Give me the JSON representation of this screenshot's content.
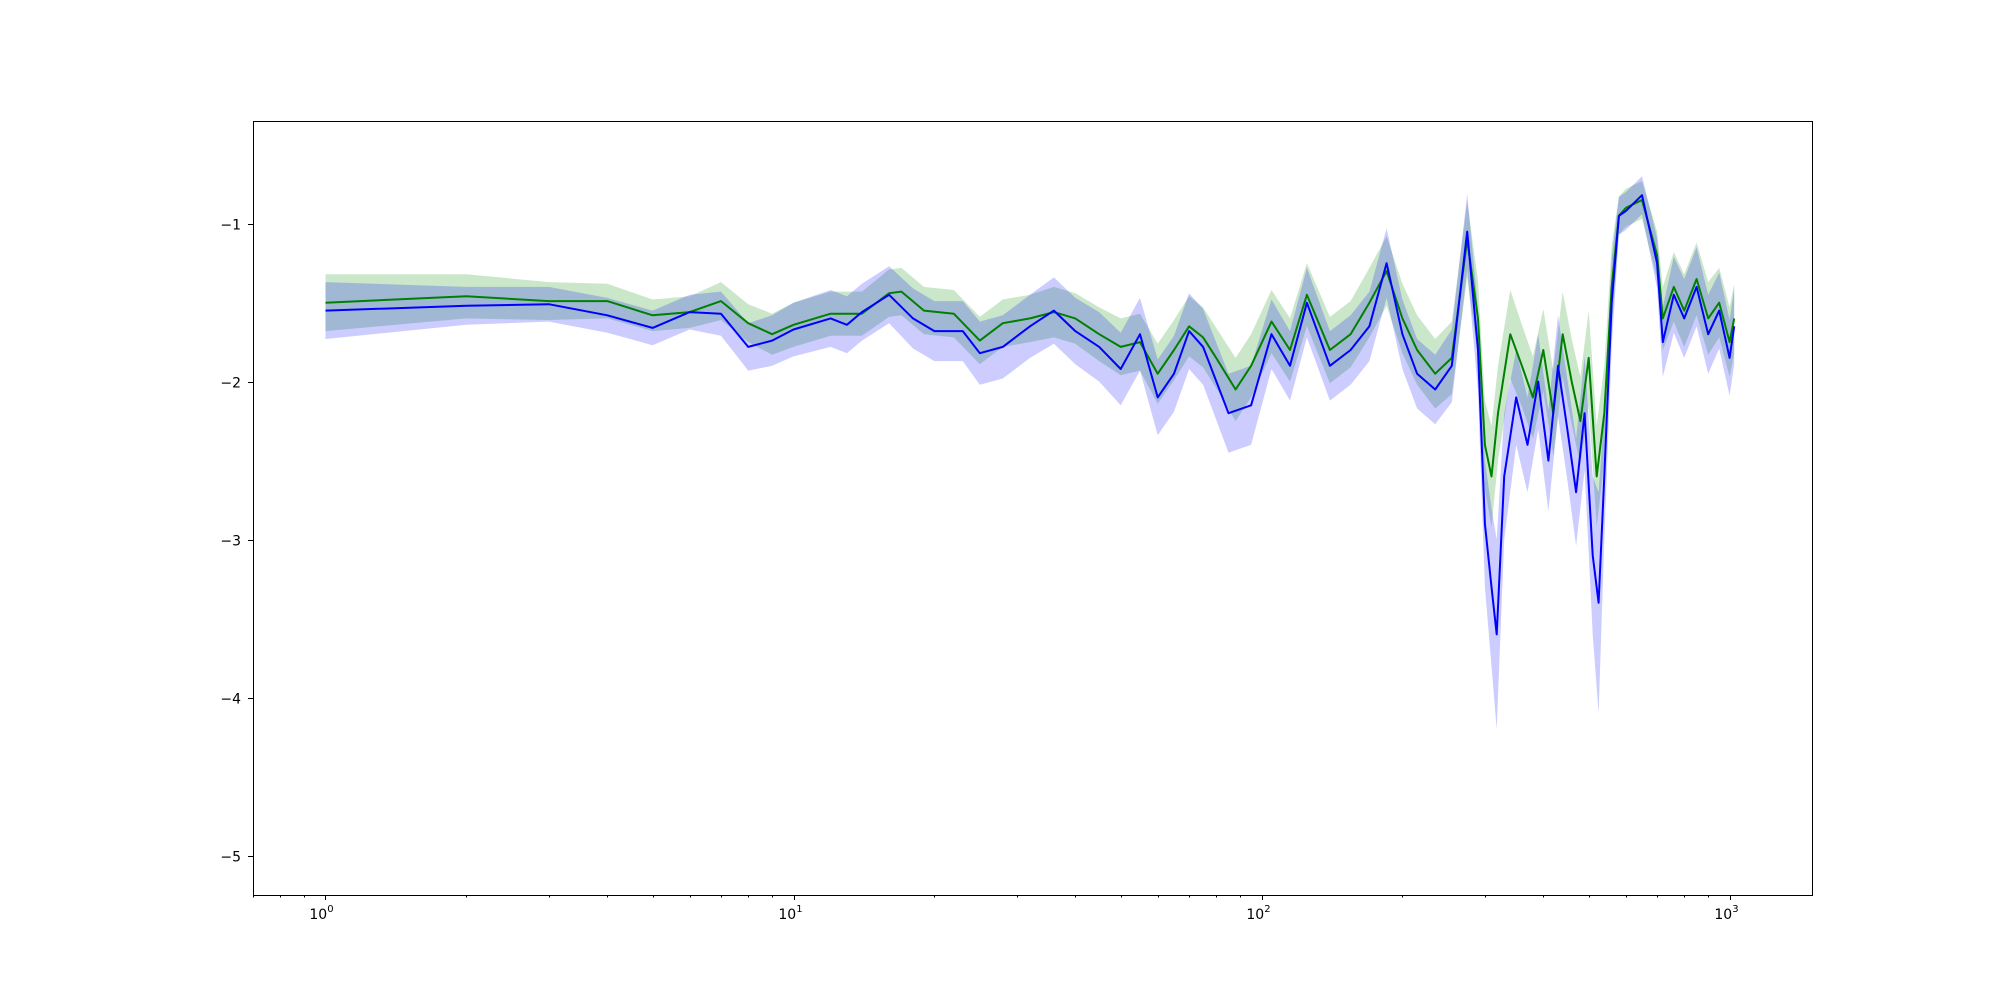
{
  "chart_data": {
    "type": "line",
    "title": "",
    "xlabel": "",
    "ylabel": "",
    "x_scale": "log",
    "xlim": [
      0.7,
      1500
    ],
    "ylim": [
      -5.25,
      -0.35
    ],
    "grid": false,
    "legend": "none",
    "x_ticks": [
      {
        "value": 1,
        "base": "10",
        "exp": "0"
      },
      {
        "value": 10,
        "base": "10",
        "exp": "1"
      },
      {
        "value": 100,
        "base": "10",
        "exp": "2"
      },
      {
        "value": 1000,
        "base": "10",
        "exp": "3"
      }
    ],
    "y_ticks": [
      {
        "value": -1,
        "label": "−1"
      },
      {
        "value": -2,
        "label": "−2"
      },
      {
        "value": -3,
        "label": "−3"
      },
      {
        "value": -4,
        "label": "−4"
      },
      {
        "value": -5,
        "label": "−5"
      }
    ],
    "series": [
      {
        "color": "#008000",
        "band_color": "#2ca02c",
        "band_opacity": 0.25,
        "points": [
          [
            1,
            -1.5,
            0.18
          ],
          [
            2,
            -1.46,
            0.14
          ],
          [
            3,
            -1.49,
            0.12
          ],
          [
            4,
            -1.49,
            0.11
          ],
          [
            5,
            -1.58,
            0.1
          ],
          [
            6,
            -1.56,
            0.1
          ],
          [
            7,
            -1.49,
            0.12
          ],
          [
            8,
            -1.63,
            0.12
          ],
          [
            9,
            -1.7,
            0.13
          ],
          [
            10,
            -1.64,
            0.14
          ],
          [
            12,
            -1.57,
            0.14
          ],
          [
            14,
            -1.57,
            0.14
          ],
          [
            16,
            -1.44,
            0.15
          ],
          [
            17,
            -1.43,
            0.15
          ],
          [
            19,
            -1.55,
            0.15
          ],
          [
            22,
            -1.57,
            0.15
          ],
          [
            25,
            -1.74,
            0.15
          ],
          [
            28,
            -1.63,
            0.15
          ],
          [
            32,
            -1.6,
            0.15
          ],
          [
            36,
            -1.56,
            0.16
          ],
          [
            40,
            -1.6,
            0.16
          ],
          [
            45,
            -1.7,
            0.17
          ],
          [
            50,
            -1.78,
            0.18
          ],
          [
            55,
            -1.75,
            0.18
          ],
          [
            60,
            -1.95,
            0.19
          ],
          [
            65,
            -1.8,
            0.19
          ],
          [
            70,
            -1.65,
            0.19
          ],
          [
            75,
            -1.72,
            0.19
          ],
          [
            80,
            -1.85,
            0.19
          ],
          [
            88,
            -2.05,
            0.2
          ],
          [
            95,
            -1.9,
            0.2
          ],
          [
            105,
            -1.62,
            0.2
          ],
          [
            115,
            -1.8,
            0.2
          ],
          [
            125,
            -1.45,
            0.2
          ],
          [
            140,
            -1.8,
            0.21
          ],
          [
            155,
            -1.7,
            0.21
          ],
          [
            170,
            -1.5,
            0.22
          ],
          [
            185,
            -1.3,
            0.22
          ],
          [
            200,
            -1.6,
            0.22
          ],
          [
            215,
            -1.8,
            0.22
          ],
          [
            235,
            -1.95,
            0.22
          ],
          [
            255,
            -1.85,
            0.23
          ],
          [
            275,
            -1.1,
            0.24
          ],
          [
            290,
            -1.6,
            0.24
          ],
          [
            300,
            -2.4,
            0.28
          ],
          [
            310,
            -2.6,
            0.32
          ],
          [
            320,
            -2.2,
            0.3
          ],
          [
            340,
            -1.7,
            0.28
          ],
          [
            360,
            -1.9,
            0.26
          ],
          [
            380,
            -2.1,
            0.26
          ],
          [
            400,
            -1.8,
            0.26
          ],
          [
            420,
            -2.2,
            0.27
          ],
          [
            440,
            -1.7,
            0.27
          ],
          [
            460,
            -2.0,
            0.27
          ],
          [
            480,
            -2.25,
            0.28
          ],
          [
            500,
            -1.85,
            0.3
          ],
          [
            520,
            -2.6,
            0.32
          ],
          [
            540,
            -2.2,
            0.3
          ],
          [
            560,
            -1.4,
            0.26
          ],
          [
            580,
            -0.95,
            0.12
          ],
          [
            600,
            -0.9,
            0.12
          ],
          [
            650,
            -0.85,
            0.12
          ],
          [
            700,
            -1.2,
            0.15
          ],
          [
            720,
            -1.6,
            0.2
          ],
          [
            760,
            -1.4,
            0.22
          ],
          [
            800,
            -1.55,
            0.23
          ],
          [
            850,
            -1.35,
            0.23
          ],
          [
            900,
            -1.6,
            0.23
          ],
          [
            950,
            -1.5,
            0.22
          ],
          [
            1000,
            -1.75,
            0.22
          ],
          [
            1023,
            -1.6,
            0.22
          ]
        ]
      },
      {
        "color": "#0000ff",
        "band_color": "#0000ff",
        "band_opacity": 0.2,
        "points": [
          [
            1,
            -1.55,
            0.18
          ],
          [
            2,
            -1.52,
            0.12
          ],
          [
            3,
            -1.51,
            0.11
          ],
          [
            4,
            -1.58,
            0.11
          ],
          [
            5,
            -1.66,
            0.11
          ],
          [
            6,
            -1.56,
            0.11
          ],
          [
            7,
            -1.57,
            0.14
          ],
          [
            8,
            -1.78,
            0.15
          ],
          [
            9,
            -1.74,
            0.16
          ],
          [
            10,
            -1.67,
            0.17
          ],
          [
            12,
            -1.6,
            0.18
          ],
          [
            13,
            -1.64,
            0.18
          ],
          [
            14,
            -1.56,
            0.18
          ],
          [
            16,
            -1.45,
            0.18
          ],
          [
            18,
            -1.6,
            0.19
          ],
          [
            20,
            -1.68,
            0.19
          ],
          [
            23,
            -1.68,
            0.19
          ],
          [
            25,
            -1.82,
            0.2
          ],
          [
            28,
            -1.78,
            0.2
          ],
          [
            32,
            -1.65,
            0.2
          ],
          [
            36,
            -1.55,
            0.21
          ],
          [
            40,
            -1.68,
            0.21
          ],
          [
            45,
            -1.78,
            0.22
          ],
          [
            50,
            -1.92,
            0.23
          ],
          [
            55,
            -1.7,
            0.23
          ],
          [
            60,
            -2.1,
            0.24
          ],
          [
            65,
            -1.95,
            0.24
          ],
          [
            70,
            -1.68,
            0.24
          ],
          [
            75,
            -1.78,
            0.24
          ],
          [
            85,
            -2.2,
            0.25
          ],
          [
            95,
            -2.15,
            0.25
          ],
          [
            105,
            -1.7,
            0.22
          ],
          [
            115,
            -1.9,
            0.22
          ],
          [
            125,
            -1.5,
            0.22
          ],
          [
            140,
            -1.9,
            0.22
          ],
          [
            155,
            -1.8,
            0.22
          ],
          [
            170,
            -1.65,
            0.22
          ],
          [
            185,
            -1.25,
            0.22
          ],
          [
            200,
            -1.7,
            0.22
          ],
          [
            215,
            -1.95,
            0.22
          ],
          [
            235,
            -2.05,
            0.22
          ],
          [
            255,
            -1.9,
            0.23
          ],
          [
            275,
            -1.05,
            0.24
          ],
          [
            290,
            -1.8,
            0.26
          ],
          [
            300,
            -2.9,
            0.4
          ],
          [
            310,
            -3.3,
            0.5
          ],
          [
            318,
            -3.6,
            0.6
          ],
          [
            330,
            -2.6,
            0.4
          ],
          [
            350,
            -2.1,
            0.3
          ],
          [
            370,
            -2.4,
            0.3
          ],
          [
            390,
            -2.0,
            0.3
          ],
          [
            410,
            -2.5,
            0.32
          ],
          [
            430,
            -1.9,
            0.32
          ],
          [
            450,
            -2.3,
            0.32
          ],
          [
            470,
            -2.7,
            0.34
          ],
          [
            490,
            -2.2,
            0.36
          ],
          [
            510,
            -3.1,
            0.5
          ],
          [
            525,
            -3.4,
            0.7
          ],
          [
            540,
            -2.6,
            0.4
          ],
          [
            560,
            -1.5,
            0.28
          ],
          [
            580,
            -0.95,
            0.12
          ],
          [
            600,
            -0.92,
            0.12
          ],
          [
            650,
            -0.82,
            0.12
          ],
          [
            700,
            -1.25,
            0.16
          ],
          [
            720,
            -1.75,
            0.22
          ],
          [
            760,
            -1.45,
            0.24
          ],
          [
            800,
            -1.6,
            0.25
          ],
          [
            850,
            -1.4,
            0.25
          ],
          [
            900,
            -1.7,
            0.25
          ],
          [
            950,
            -1.55,
            0.24
          ],
          [
            1000,
            -1.85,
            0.24
          ],
          [
            1023,
            -1.65,
            0.24
          ]
        ]
      }
    ]
  }
}
